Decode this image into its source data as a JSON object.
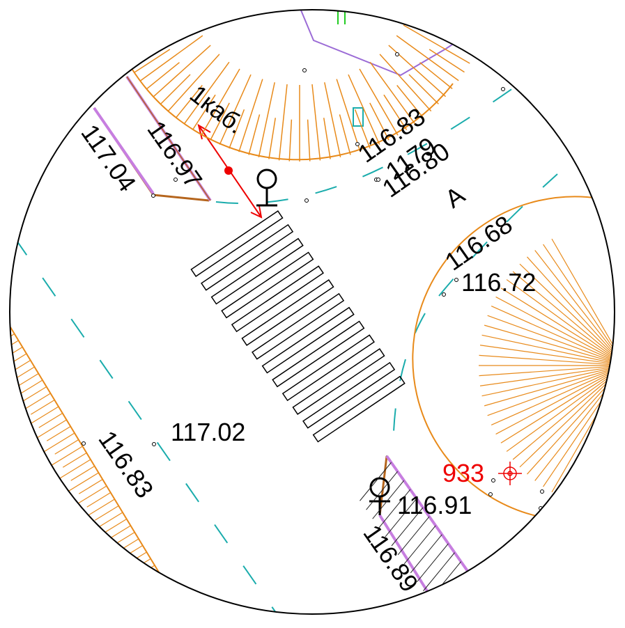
{
  "labels": {
    "cable": "1каб.",
    "top_left_a": "116.97",
    "top_left_b": "117.04",
    "top_mid": "116.83",
    "overlap_a": "116.80",
    "overlap_b": "1179",
    "letter": "A",
    "mid_right_a": "116.68",
    "mid_right_b": "116.72",
    "center": "117.02",
    "bottom_left": "116.83",
    "marker": "933",
    "bottom_mid_a": "116.91",
    "bottom_mid_b": "116.89"
  }
}
